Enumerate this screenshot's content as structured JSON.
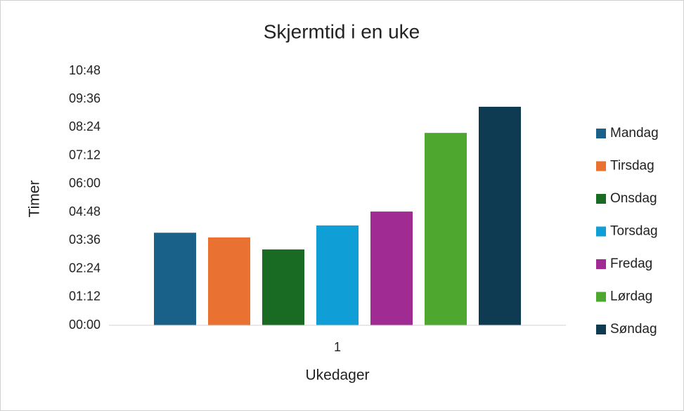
{
  "chart_data": {
    "type": "bar",
    "title": "Skjermtid i en uke",
    "x_label": "Ukedager",
    "y_label": "Timer",
    "categories": [
      "1"
    ],
    "series": [
      {
        "name": "Mandag",
        "color": "#1a6189",
        "values": [
          3.93
        ]
      },
      {
        "name": "Tirsdag",
        "color": "#e97132",
        "values": [
          3.73
        ]
      },
      {
        "name": "Onsdag",
        "color": "#196b24",
        "values": [
          3.22
        ]
      },
      {
        "name": "Torsdag",
        "color": "#0f9ed5",
        "values": [
          4.24
        ]
      },
      {
        "name": "Fredag",
        "color": "#a02b93",
        "values": [
          4.83
        ]
      },
      {
        "name": "Lørdag",
        "color": "#4ea72e",
        "values": [
          8.17
        ]
      },
      {
        "name": "Søndag",
        "color": "#0e3a52",
        "values": [
          9.28
        ]
      }
    ],
    "ylim": [
      0,
      10.8
    ],
    "yticks": [
      {
        "value": 0,
        "label": "00:00"
      },
      {
        "value": 1.2,
        "label": "01:12"
      },
      {
        "value": 2.4,
        "label": "02:24"
      },
      {
        "value": 3.6,
        "label": "03:36"
      },
      {
        "value": 4.8,
        "label": "04:48"
      },
      {
        "value": 6,
        "label": "06:00"
      },
      {
        "value": 7.2,
        "label": "07:12"
      },
      {
        "value": 8.4,
        "label": "08:24"
      },
      {
        "value": 9.6,
        "label": "09:36"
      },
      {
        "value": 10.8,
        "label": "10:48"
      }
    ],
    "grid": false,
    "legend": "right"
  }
}
